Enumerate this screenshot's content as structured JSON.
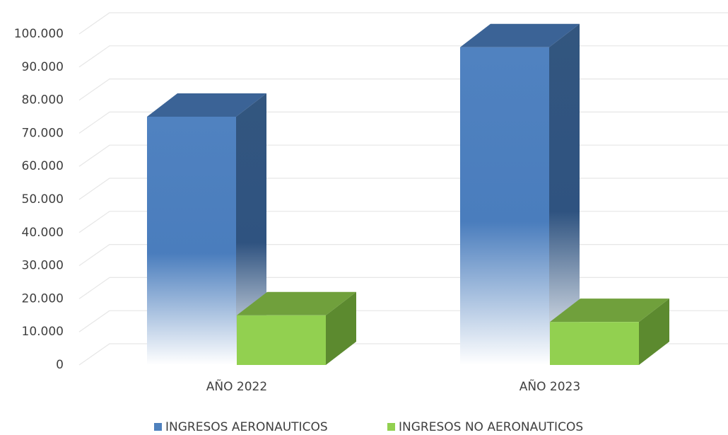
{
  "chart_data": {
    "type": "bar3d",
    "categories": [
      "AÑO 2022",
      "AÑO 2023"
    ],
    "series": [
      {
        "name": "INGRESOS AERONAUTICOS",
        "color": "#4f81bd",
        "values": [
          75000,
          96000
        ]
      },
      {
        "name": "INGRESOS NO AERONAUTICOS",
        "color": "#92d050",
        "values": [
          15000,
          13000
        ]
      }
    ],
    "ylim": [
      0,
      100000
    ],
    "yticks": [
      0,
      {
        "value": 10000,
        "label": "10.000"
      },
      {
        "value": 20000,
        "label": "20.000"
      },
      {
        "value": 30000,
        "label": "30.000"
      },
      {
        "value": 40000,
        "label": "40.000"
      },
      {
        "value": 50000,
        "label": "50.000"
      },
      {
        "value": 60000,
        "label": "60.000"
      },
      {
        "value": 70000,
        "label": "70.000"
      },
      {
        "value": 80000,
        "label": "80.000"
      },
      {
        "value": 90000,
        "label": "90.000"
      },
      {
        "value": 100000,
        "label": "100.000"
      }
    ],
    "grid": true,
    "legend": "bottom"
  }
}
